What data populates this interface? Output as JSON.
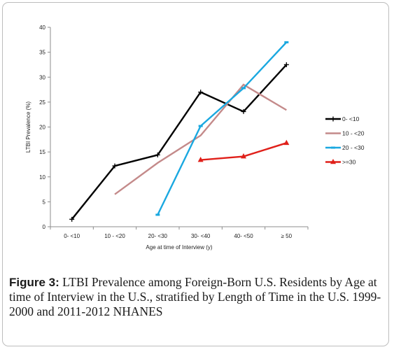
{
  "chart_data": {
    "type": "line",
    "title": "",
    "xlabel": "Age at time of Interview (y)",
    "ylabel": "LTBI Prevalence (%)",
    "categories": [
      "0- <10",
      "10 - <20",
      "20- <30",
      "30- <40",
      "40- <50",
      "≥ 50"
    ],
    "ylim": [
      0,
      40
    ],
    "yticks": [
      "0",
      "5",
      "10",
      "15",
      "20",
      "25",
      "30",
      "35",
      "40"
    ],
    "grid": false,
    "legend_position": "right",
    "series": [
      {
        "name": "0- <10",
        "color": "#000000",
        "marker": "plus",
        "values": [
          1.5,
          12.2,
          14.4,
          27.0,
          23.1,
          32.5
        ]
      },
      {
        "name": "10 - <20",
        "color": "#c48a8a",
        "marker": "none",
        "values": [
          null,
          6.5,
          12.8,
          18.3,
          28.5,
          23.4
        ]
      },
      {
        "name": "20 - <30",
        "color": "#1aa8e0",
        "marker": "dash",
        "values": [
          null,
          null,
          2.4,
          20.2,
          27.8,
          37.0
        ]
      },
      {
        "name": ">=30",
        "color": "#e0201a",
        "marker": "triangle",
        "values": [
          null,
          null,
          null,
          13.4,
          14.1,
          16.8
        ]
      }
    ]
  },
  "caption": {
    "label": "Figure 3:",
    "text": " LTBI Prevalence among Foreign-Born U.S. Residents by Age at time of Interview in the U.S., stratified by Length of Time in the U.S. 1999-2000 and 2011-2012 NHANES"
  }
}
